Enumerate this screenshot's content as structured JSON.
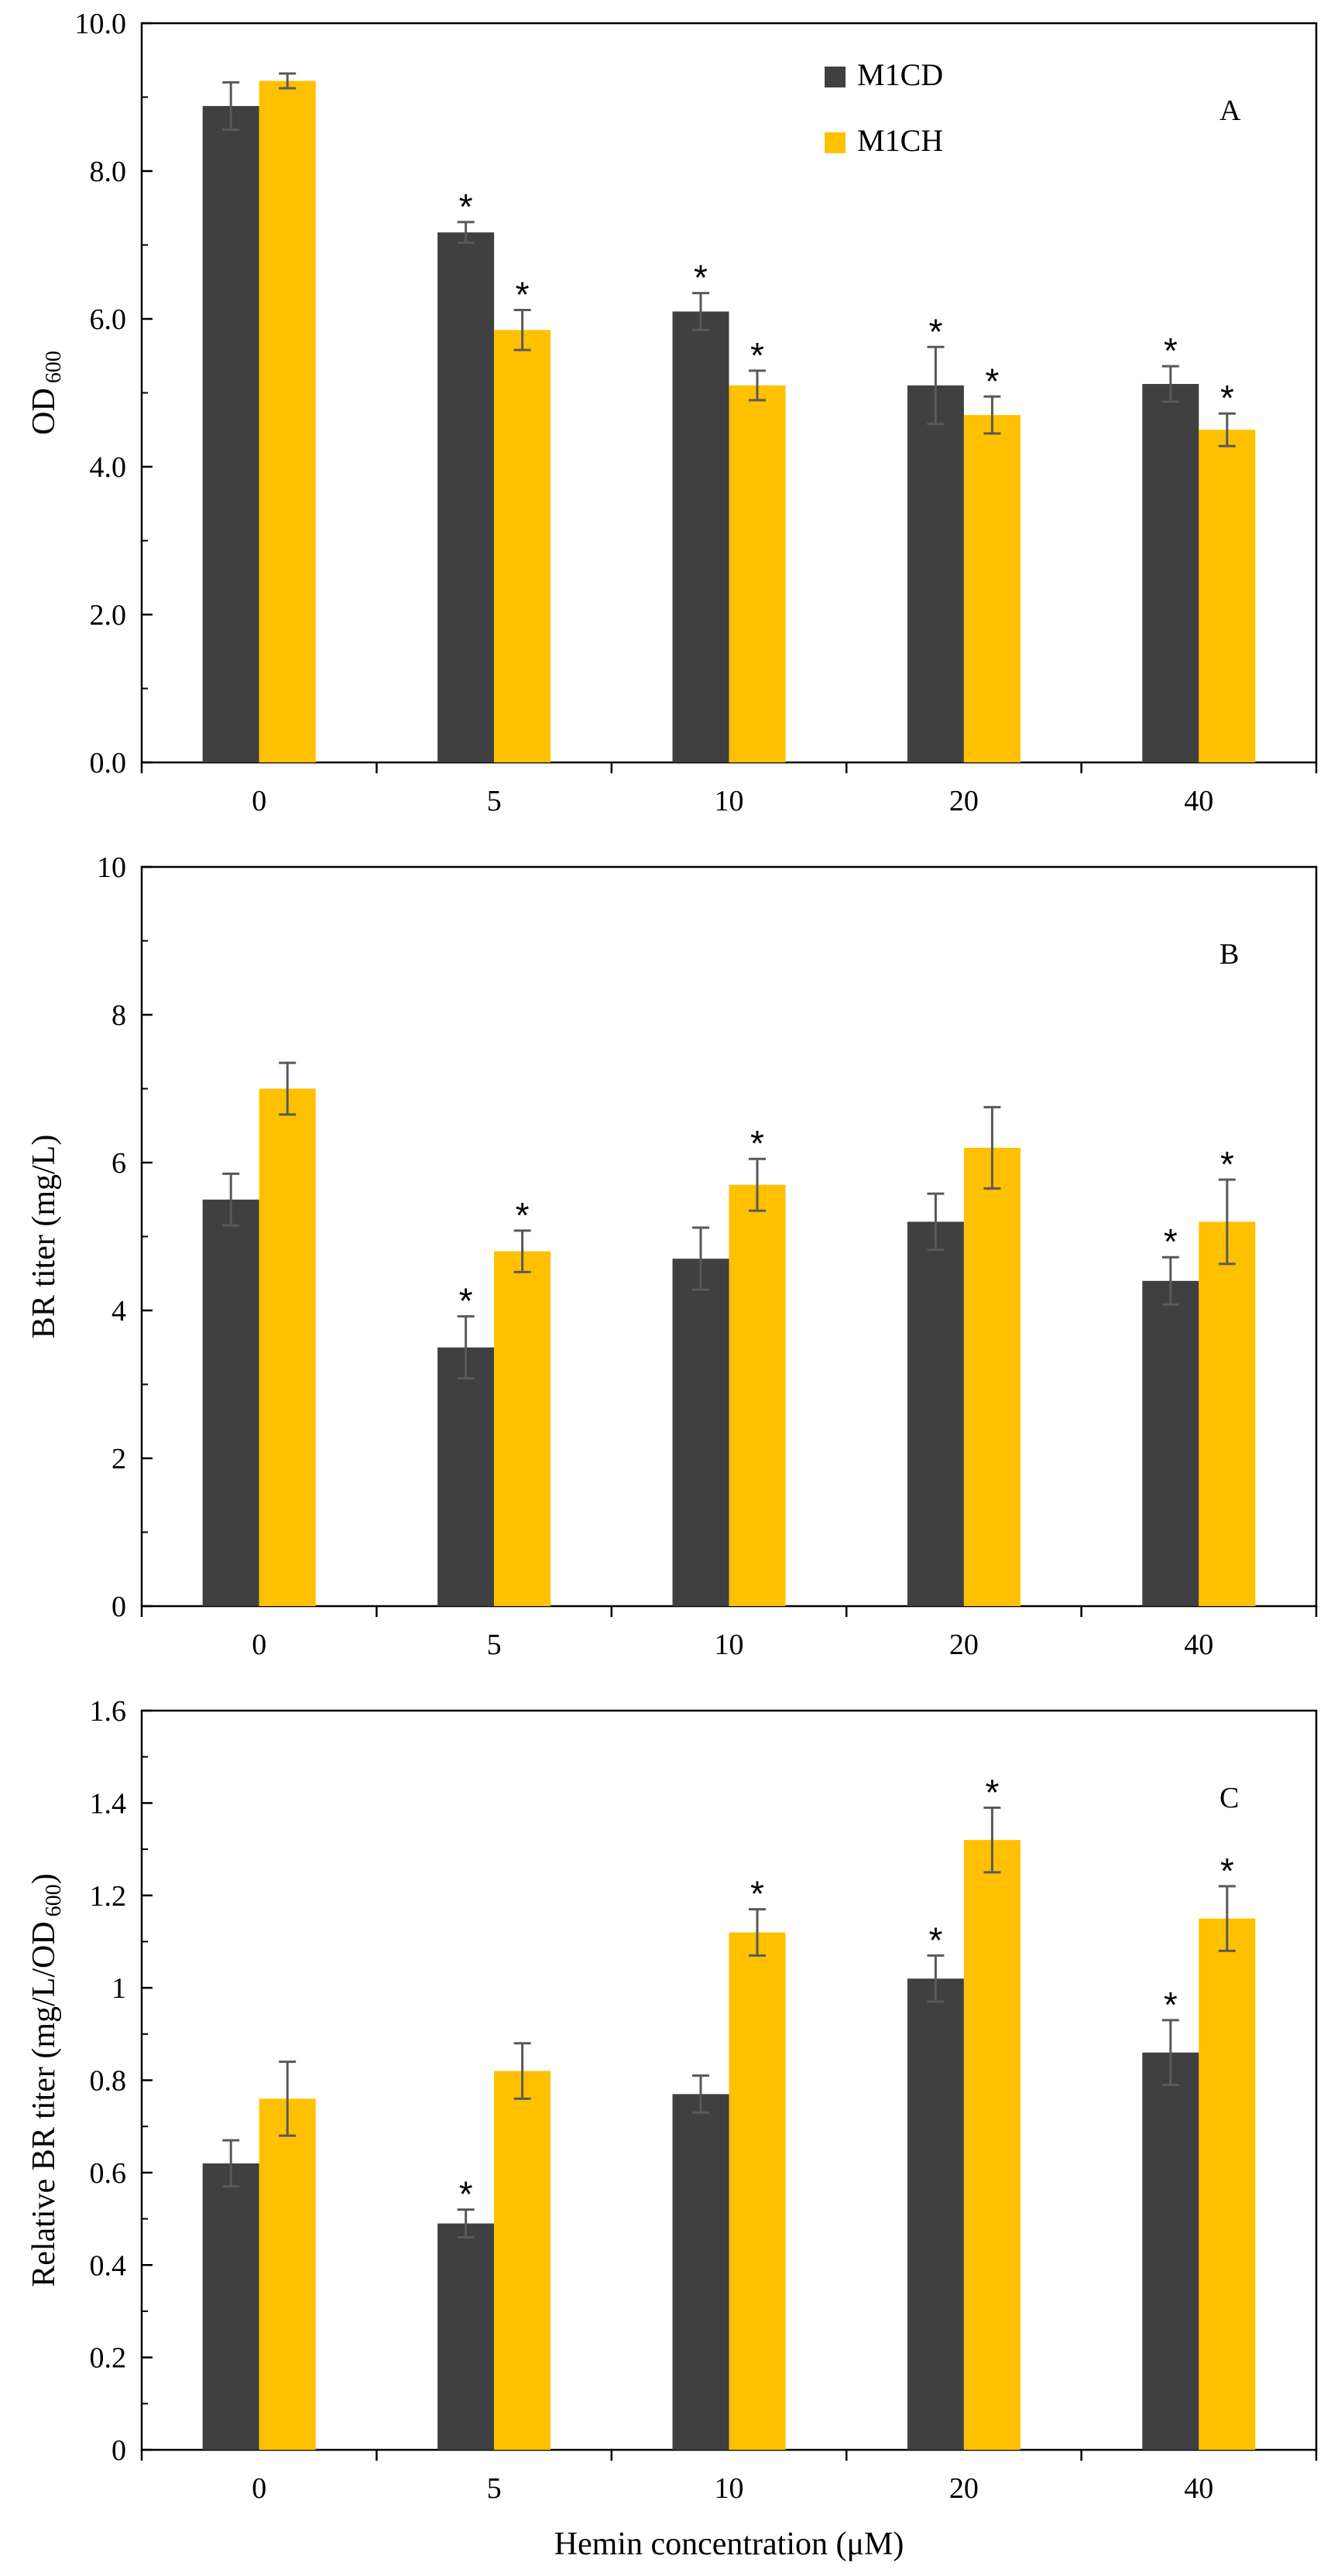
{
  "chart_data": [
    {
      "type": "bar",
      "panel_label": "A",
      "categories": [
        "0",
        "5",
        "10",
        "20",
        "40"
      ],
      "ylabel_main": "OD",
      "ylabel_sub": "600",
      "xlabel": "",
      "ylim": [
        0,
        10
      ],
      "yticks": [
        "0.0",
        "2.0",
        "4.0",
        "6.0",
        "8.0",
        "10.0"
      ],
      "series": [
        {
          "name": "M1CD",
          "color": "#404040",
          "values": [
            8.88,
            7.17,
            6.1,
            5.1,
            5.12
          ],
          "errors": [
            0.32,
            0.14,
            0.25,
            0.52,
            0.24
          ],
          "significant": [
            false,
            true,
            true,
            true,
            true
          ]
        },
        {
          "name": "M1CH",
          "color": "#FFC000",
          "values": [
            9.22,
            5.85,
            5.1,
            4.7,
            4.5
          ],
          "errors": [
            0.1,
            0.27,
            0.2,
            0.25,
            0.22
          ],
          "significant": [
            false,
            true,
            true,
            true,
            true
          ]
        }
      ],
      "legend": {
        "position": "top-right",
        "entries": [
          "M1CD",
          "M1CH"
        ]
      },
      "significance_marker": "*"
    },
    {
      "type": "bar",
      "panel_label": "B",
      "categories": [
        "0",
        "5",
        "10",
        "20",
        "40"
      ],
      "ylabel_main": "BR titer  (mg/L)",
      "ylabel_sub": "",
      "xlabel": "",
      "ylim": [
        0,
        10
      ],
      "yticks": [
        "0",
        "2",
        "4",
        "6",
        "8",
        "10"
      ],
      "series": [
        {
          "name": "M1CD",
          "color": "#404040",
          "values": [
            5.5,
            3.5,
            4.7,
            5.2,
            4.4
          ],
          "errors": [
            0.35,
            0.42,
            0.42,
            0.38,
            0.32
          ],
          "significant": [
            false,
            true,
            false,
            false,
            true
          ]
        },
        {
          "name": "M1CH",
          "color": "#FFC000",
          "values": [
            7.0,
            4.8,
            5.7,
            6.2,
            5.2
          ],
          "errors": [
            0.35,
            0.28,
            0.35,
            0.55,
            0.57
          ],
          "significant": [
            false,
            true,
            true,
            false,
            true
          ]
        }
      ],
      "significance_marker": "*"
    },
    {
      "type": "bar",
      "panel_label": "C",
      "categories": [
        "0",
        "5",
        "10",
        "20",
        "40"
      ],
      "ylabel_main": "Relative BR titer (mg/L/OD",
      "ylabel_sub": "600",
      "ylabel_tail": ")",
      "xlabel": "Hemin concentration (μM)",
      "ylim": [
        0,
        1.6
      ],
      "yticks": [
        "0",
        "0.2",
        "0.4",
        "0.6",
        "0.8",
        "1",
        "1.2",
        "1.4",
        "1.6"
      ],
      "series": [
        {
          "name": "M1CD",
          "color": "#404040",
          "values": [
            0.62,
            0.49,
            0.77,
            1.02,
            0.86
          ],
          "errors": [
            0.05,
            0.03,
            0.04,
            0.05,
            0.07
          ],
          "significant": [
            false,
            true,
            false,
            true,
            true
          ]
        },
        {
          "name": "M1CH",
          "color": "#FFC000",
          "values": [
            0.76,
            0.82,
            1.12,
            1.32,
            1.15
          ],
          "errors": [
            0.08,
            0.06,
            0.05,
            0.07,
            0.07
          ],
          "significant": [
            false,
            false,
            true,
            true,
            true
          ]
        }
      ],
      "significance_marker": "*"
    }
  ]
}
